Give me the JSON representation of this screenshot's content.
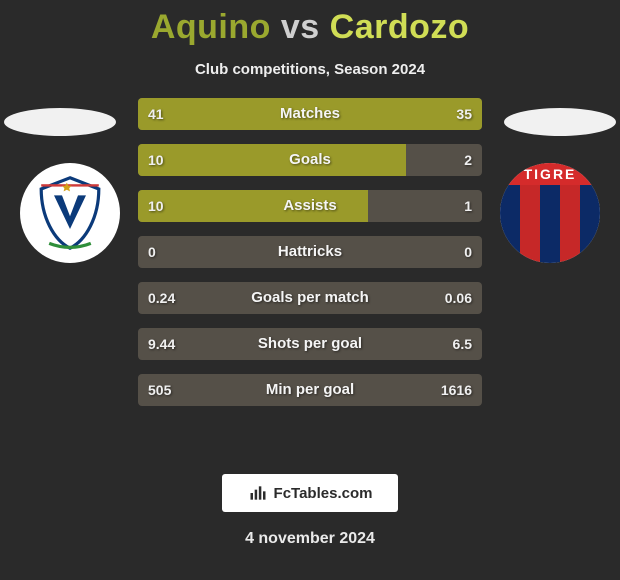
{
  "title": {
    "player1": "Aquino",
    "vs": "vs",
    "player2": "Cardozo"
  },
  "subtitle": "Club competitions, Season 2024",
  "crest_left": {
    "bg": "#ffffff",
    "shield_fill": "#ffffff",
    "shield_stroke": "#0b3a7a",
    "v_color": "#0b3a7a",
    "star_color": "#d4a017",
    "ribbon_top": "#cf3a3a",
    "ribbon_bottom": "#2f8f3a"
  },
  "crest_right": {
    "band_text": "TIGRE",
    "band_bg": "#d52b2b",
    "stripes": [
      "#0c2a66",
      "#c62828",
      "#0c2a66",
      "#c62828",
      "#0c2a66"
    ]
  },
  "bars": {
    "track_color": "#555048",
    "fill_color": "#9a9a2a",
    "rows": [
      {
        "label": "Matches",
        "left_val": "41",
        "right_val": "35",
        "left_pct": 54,
        "right_pct": 46
      },
      {
        "label": "Goals",
        "left_val": "10",
        "right_val": "2",
        "left_pct": 78,
        "right_pct": 0
      },
      {
        "label": "Assists",
        "left_val": "10",
        "right_val": "1",
        "left_pct": 67,
        "right_pct": 0
      },
      {
        "label": "Hattricks",
        "left_val": "0",
        "right_val": "0",
        "left_pct": 0,
        "right_pct": 0
      },
      {
        "label": "Goals per match",
        "left_val": "0.24",
        "right_val": "0.06",
        "left_pct": 0,
        "right_pct": 0
      },
      {
        "label": "Shots per goal",
        "left_val": "9.44",
        "right_val": "6.5",
        "left_pct": 0,
        "right_pct": 0
      },
      {
        "label": "Min per goal",
        "left_val": "505",
        "right_val": "1616",
        "left_pct": 0,
        "right_pct": 0
      }
    ]
  },
  "brand": {
    "icon": "chart-icon",
    "text": "FcTables.com"
  },
  "date": "4 november 2024",
  "colors": {
    "page_bg": "#2a2a2a",
    "title_p1": "#9aa82f",
    "title_vs": "#cfcfcf",
    "title_p2": "#d0dd55",
    "halo": "#f1f1f1",
    "text_light": "#eeeeee"
  }
}
